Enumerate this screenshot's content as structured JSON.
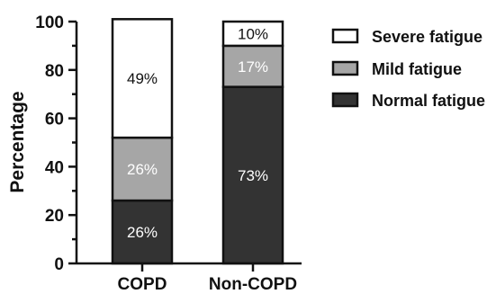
{
  "chart_data": {
    "type": "bar",
    "stacked": true,
    "categories": [
      "COPD",
      "Non-COPD"
    ],
    "series": [
      {
        "name": "Normal fatigue",
        "values": [
          26,
          73
        ],
        "labels": [
          "26%",
          "73%"
        ],
        "color": "#333333",
        "label_color": "#ffffff"
      },
      {
        "name": "Mild fatigue",
        "values": [
          26,
          17
        ],
        "labels": [
          "26%",
          "17%"
        ],
        "color": "#a6a6a6",
        "label_color": "#ffffff"
      },
      {
        "name": "Severe fatigue",
        "values": [
          49,
          10
        ],
        "labels": [
          "49%",
          "10%"
        ],
        "color": "#ffffff",
        "label_color": "#111111"
      }
    ],
    "legend_order": [
      "Severe fatigue",
      "Mild fatigue",
      "Normal fatigue"
    ],
    "ylabel": "Percentage",
    "xlabel": "",
    "ylim": [
      0,
      100
    ],
    "yticks": [
      0,
      20,
      40,
      60,
      80,
      100
    ],
    "grid": false,
    "legend_position": "right"
  }
}
